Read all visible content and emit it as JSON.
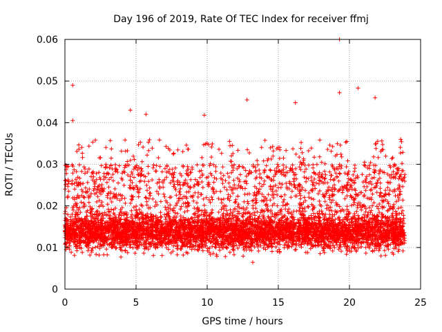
{
  "chart_data": {
    "type": "scatter",
    "title": "Day 196 of 2019, Rate Of TEC Index for receiver ffmj",
    "xlabel": "GPS time / hours",
    "ylabel": "ROTI / TECUs",
    "xlim": [
      0,
      25
    ],
    "ylim": [
      0,
      0.06
    ],
    "xticks": [
      0,
      5,
      10,
      15,
      20,
      25
    ],
    "xtick_labels": [
      "0",
      "5",
      "10",
      "15",
      "20",
      "25"
    ],
    "yticks": [
      0,
      0.01,
      0.02,
      0.03,
      0.04,
      0.05,
      0.06
    ],
    "ytick_labels": [
      "0",
      "0.01",
      "0.02",
      "0.03",
      "0.04",
      "0.05",
      "0.06"
    ],
    "grid": true,
    "marker": "+",
    "color": "#ff0000",
    "series": [
      {
        "name": "ROTI",
        "x_range": [
          0,
          23.9
        ],
        "typical_band": [
          0.005,
          0.02
        ],
        "approx_point_count": 6000,
        "notable_points": [
          {
            "x": 0.55,
            "y": 0.049
          },
          {
            "x": 0.55,
            "y": 0.0405
          },
          {
            "x": 4.6,
            "y": 0.043
          },
          {
            "x": 5.7,
            "y": 0.042
          },
          {
            "x": 9.8,
            "y": 0.0418
          },
          {
            "x": 12.8,
            "y": 0.0455
          },
          {
            "x": 16.2,
            "y": 0.0448
          },
          {
            "x": 19.3,
            "y": 0.06
          },
          {
            "x": 19.3,
            "y": 0.0472
          },
          {
            "x": 20.6,
            "y": 0.0483
          },
          {
            "x": 21.8,
            "y": 0.046
          },
          {
            "x": 23.6,
            "y": 0.036
          }
        ]
      }
    ]
  }
}
